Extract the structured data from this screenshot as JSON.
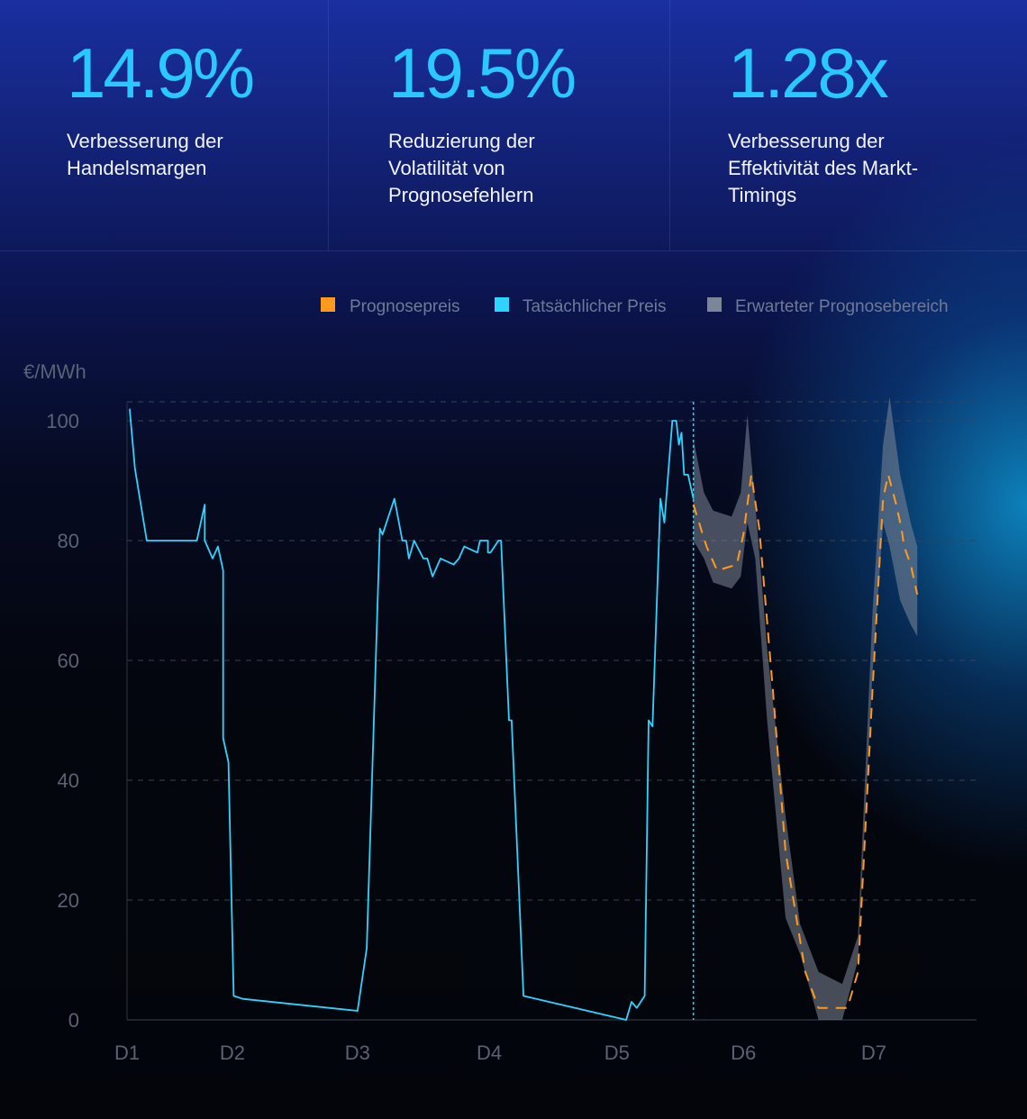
{
  "stats": [
    {
      "value": "14.9%",
      "label_lines": [
        "Verbesserung der",
        "Handelsmargen"
      ]
    },
    {
      "value": "19.5%",
      "label_lines": [
        "Reduzierung der",
        "Volatilität von",
        "Prognosefehlern"
      ]
    },
    {
      "value": "1.28x",
      "label_lines": [
        "Verbesserung der",
        "Effektivität des Markt-",
        "Timings"
      ]
    }
  ],
  "legend": [
    {
      "label": "Prognosepreis",
      "color": "#ff9a1f"
    },
    {
      "label": "Tatsächlicher Preis",
      "color": "#2ed4ff"
    },
    {
      "label": "Erwarteter Prognosebereich",
      "color": "#7d8698"
    }
  ],
  "chart_data": {
    "type": "line",
    "ylabel": "€/MWh",
    "ylim": [
      0,
      100
    ],
    "yticks": [
      0,
      20,
      40,
      60,
      80,
      100
    ],
    "xlim": [
      1,
      7.45
    ],
    "xticks": [
      {
        "label": "D1",
        "value": 1.0
      },
      {
        "label": "D2",
        "value": 1.8
      },
      {
        "label": "D3",
        "value": 2.75
      },
      {
        "label": "D4",
        "value": 3.75
      },
      {
        "label": "D5",
        "value": 4.72
      },
      {
        "label": "D6",
        "value": 5.68
      },
      {
        "label": "D7",
        "value": 6.67
      }
    ],
    "grid": "horizontal-dashed",
    "legend_position": "top-right",
    "forecast_start": 5.3,
    "series": [
      {
        "name": "Tatsächlicher Preis",
        "color": "#2ed4ff",
        "x": [
          1.02,
          1.06,
          1.15,
          1.53,
          1.59,
          1.59,
          1.65,
          1.69,
          1.73,
          1.73,
          1.77,
          1.81,
          1.88,
          2.75,
          2.82,
          2.92,
          2.94,
          3.03,
          3.09,
          3.12,
          3.14,
          3.18,
          3.25,
          3.28,
          3.32,
          3.38,
          3.48,
          3.52,
          3.56,
          3.66,
          3.68,
          3.74,
          3.74,
          3.76,
          3.82,
          3.84,
          3.9,
          3.92,
          4.01,
          4.79,
          4.83,
          4.87,
          4.93,
          4.96,
          4.99,
          5.05,
          5.08,
          5.14,
          5.17,
          5.19,
          5.21,
          5.23,
          5.26,
          5.3
        ],
        "y": [
          102,
          92,
          80,
          80,
          86,
          80,
          77,
          79,
          75,
          47,
          43,
          4,
          3.5,
          1.5,
          12,
          82,
          81,
          87,
          80,
          80,
          77,
          80,
          77,
          77,
          74,
          77,
          76,
          77,
          79,
          78,
          80,
          80,
          78,
          78,
          80,
          80,
          50,
          50,
          4,
          0,
          3,
          2,
          4,
          50,
          49,
          87,
          83,
          100,
          100,
          96,
          98,
          91,
          91,
          87
        ]
      },
      {
        "name": "Prognosepreis",
        "color": "#ff9a1f",
        "x": [
          5.3,
          5.4,
          5.48,
          5.63,
          5.68,
          5.74,
          5.8,
          5.9,
          6.0,
          6.15,
          6.25,
          6.37,
          6.47,
          6.55,
          6.66,
          6.74,
          6.78,
          6.84,
          6.88,
          6.9,
          6.95,
          7.0
        ],
        "y": [
          86,
          79,
          75,
          76,
          81,
          91,
          82,
          56,
          28,
          8,
          2,
          2,
          2,
          8,
          55,
          87,
          91,
          86,
          82,
          79,
          76,
          71
        ]
      }
    ],
    "forecast_band": {
      "name": "Erwarteter Prognosebereich",
      "x": [
        5.3,
        5.38,
        5.45,
        5.59,
        5.66,
        5.71,
        5.77,
        5.86,
        6.0,
        6.11,
        6.25,
        6.43,
        6.55,
        6.66,
        6.74,
        6.79,
        6.87,
        6.95,
        7.0
      ],
      "upper": [
        97,
        88,
        85,
        84,
        88,
        101,
        86,
        62,
        34,
        16,
        8,
        6,
        14,
        68,
        96,
        104,
        91,
        83,
        79
      ],
      "lower": [
        80,
        77,
        73,
        72,
        74,
        83,
        77,
        50,
        17,
        11,
        0,
        0,
        10,
        58,
        83,
        79,
        70,
        66,
        64
      ]
    }
  }
}
